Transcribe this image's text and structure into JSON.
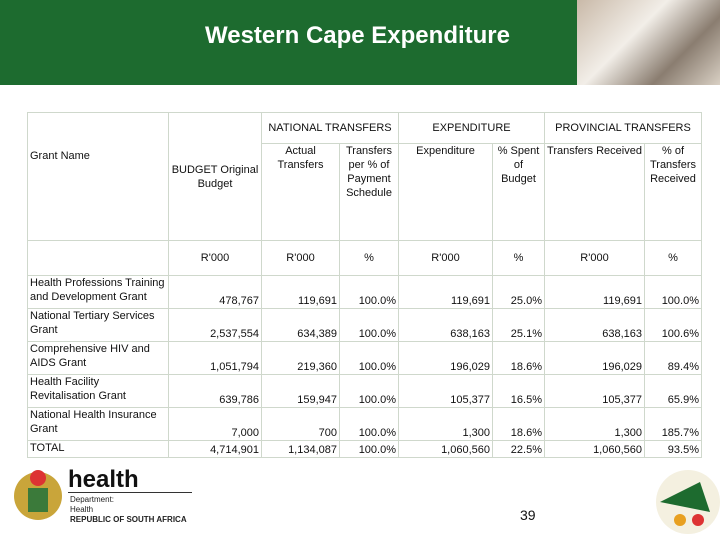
{
  "header": {
    "title": "Western Cape Expenditure"
  },
  "table": {
    "group_headers": [
      "NATIONAL TRANSFERS",
      "EXPENDITURE",
      "PROVINCIAL TRANSFERS"
    ],
    "columns": [
      "Grant Name",
      "BUDGET Original Budget",
      "Actual Transfers",
      "Transfers per % of Payment Schedule",
      "Expenditure",
      "% Spent of Budget",
      "Transfers Received",
      "% of Transfers Received"
    ],
    "units": [
      "R'000",
      "R'000",
      "%",
      "R'000",
      "%",
      "R'000",
      "%"
    ],
    "rows": [
      [
        "Health Professions Training and Development Grant",
        "478,767",
        "119,691",
        "100.0%",
        "119,691",
        "25.0%",
        "119,691",
        "100.0%"
      ],
      [
        "National Tertiary Services Grant",
        "2,537,554",
        "634,389",
        "100.0%",
        "638,163",
        "25.1%",
        "638,163",
        "100.6%"
      ],
      [
        "Comprehensive HIV and AIDS Grant",
        "1,051,794",
        "219,360",
        "100.0%",
        "196,029",
        "18.6%",
        "196,029",
        "89.4%"
      ],
      [
        "Health Facility Revitalisation Grant",
        "639,786",
        "159,947",
        "100.0%",
        "105,377",
        "16.5%",
        "105,377",
        "65.9%"
      ],
      [
        "National Health Insurance Grant",
        "7,000",
        "700",
        "100.0%",
        "1,300",
        "18.6%",
        "1,300",
        "185.7%"
      ],
      [
        "TOTAL",
        "4,714,901",
        "1,134,087",
        "100.0%",
        "1,060,560",
        "22.5%",
        "1,060,560",
        "93.5%"
      ]
    ]
  },
  "footer": {
    "logo_text": "health",
    "department": "Department:",
    "department_name": "Health",
    "country": "REPUBLIC OF SOUTH AFRICA",
    "page_number": "39"
  }
}
